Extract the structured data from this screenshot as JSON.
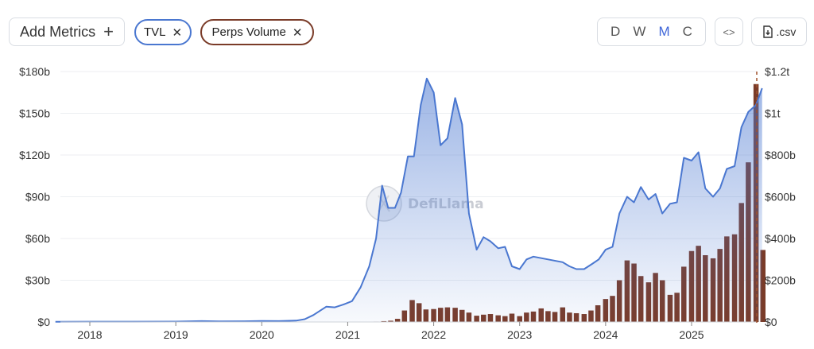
{
  "toolbar": {
    "add_metrics_label": "Add Metrics",
    "add_icon": "+",
    "chips": [
      {
        "label": "TVL",
        "color": "#4a77d0"
      },
      {
        "label": "Perps Volume",
        "color": "#7a3b28"
      }
    ],
    "close_icon": "✕",
    "periods": [
      "D",
      "W",
      "M",
      "C"
    ],
    "active_period": "M",
    "embed_icon": "<>",
    "csv_label": ".csv"
  },
  "watermark": "DefiLlama",
  "chart_data": {
    "type": "line",
    "x_ticks": [
      "2018",
      "2019",
      "2020",
      "2021",
      "2022",
      "2023",
      "2024",
      "2025"
    ],
    "y_left": {
      "ticks": [
        "$0",
        "$30b",
        "$60b",
        "$90b",
        "$120b",
        "$150b",
        "$180b"
      ],
      "range": [
        0,
        180
      ],
      "unit": "b"
    },
    "y_right": {
      "ticks": [
        "$0",
        "$200b",
        "$400b",
        "$600b",
        "$800b",
        "$1t",
        "$1.2t"
      ],
      "range": [
        0,
        1200
      ],
      "unit": "b"
    },
    "grid": true,
    "series": [
      {
        "name": "TVL",
        "type": "area",
        "axis": "left",
        "color": "#4a77d0",
        "points": [
          [
            2017.6,
            0.1
          ],
          [
            2018.0,
            0.2
          ],
          [
            2018.5,
            0.2
          ],
          [
            2019.0,
            0.3
          ],
          [
            2019.3,
            0.6
          ],
          [
            2019.5,
            0.4
          ],
          [
            2019.8,
            0.5
          ],
          [
            2020.0,
            0.7
          ],
          [
            2020.2,
            0.6
          ],
          [
            2020.4,
            1.0
          ],
          [
            2020.5,
            2.0
          ],
          [
            2020.6,
            5.0
          ],
          [
            2020.7,
            9.0
          ],
          [
            2020.75,
            11.0
          ],
          [
            2020.85,
            10.5
          ],
          [
            2020.95,
            12.5
          ],
          [
            2021.05,
            15.0
          ],
          [
            2021.15,
            25.0
          ],
          [
            2021.25,
            40.0
          ],
          [
            2021.33,
            60.0
          ],
          [
            2021.4,
            98.0
          ],
          [
            2021.47,
            82.0
          ],
          [
            2021.55,
            82.0
          ],
          [
            2021.62,
            93.0
          ],
          [
            2021.7,
            119.0
          ],
          [
            2021.77,
            119.0
          ],
          [
            2021.85,
            156.0
          ],
          [
            2021.92,
            175.0
          ],
          [
            2022.0,
            165.0
          ],
          [
            2022.08,
            127.0
          ],
          [
            2022.16,
            132.0
          ],
          [
            2022.25,
            161.0
          ],
          [
            2022.33,
            142.0
          ],
          [
            2022.41,
            78.0
          ],
          [
            2022.5,
            52.0
          ],
          [
            2022.58,
            61.0
          ],
          [
            2022.66,
            58.0
          ],
          [
            2022.75,
            53.0
          ],
          [
            2022.83,
            54.0
          ],
          [
            2022.91,
            40.0
          ],
          [
            2023.0,
            38.0
          ],
          [
            2023.08,
            45.0
          ],
          [
            2023.16,
            47.0
          ],
          [
            2023.33,
            45.0
          ],
          [
            2023.5,
            43.0
          ],
          [
            2023.58,
            40.0
          ],
          [
            2023.66,
            38.0
          ],
          [
            2023.75,
            38.0
          ],
          [
            2023.85,
            42.0
          ],
          [
            2023.92,
            45.0
          ],
          [
            2024.0,
            52.0
          ],
          [
            2024.08,
            54.0
          ],
          [
            2024.16,
            78.0
          ],
          [
            2024.25,
            90.0
          ],
          [
            2024.33,
            86.0
          ],
          [
            2024.41,
            97.0
          ],
          [
            2024.5,
            88.0
          ],
          [
            2024.58,
            92.0
          ],
          [
            2024.66,
            78.0
          ],
          [
            2024.75,
            85.0
          ],
          [
            2024.83,
            86.0
          ],
          [
            2024.91,
            118.0
          ],
          [
            2025.0,
            116.0
          ],
          [
            2025.08,
            122.0
          ],
          [
            2025.16,
            96.0
          ],
          [
            2025.25,
            90.0
          ],
          [
            2025.33,
            96.0
          ],
          [
            2025.41,
            110.0
          ],
          [
            2025.5,
            112.0
          ],
          [
            2025.58,
            140.0
          ],
          [
            2025.66,
            151.0
          ],
          [
            2025.75,
            156.0
          ],
          [
            2025.82,
            168.0
          ]
        ]
      },
      {
        "name": "Perps Volume",
        "type": "bar",
        "axis": "right",
        "color": "#7a3b28",
        "points": [
          [
            2021.25,
            1
          ],
          [
            2021.33,
            2
          ],
          [
            2021.42,
            4
          ],
          [
            2021.5,
            6
          ],
          [
            2021.58,
            15
          ],
          [
            2021.66,
            55
          ],
          [
            2021.75,
            105
          ],
          [
            2021.83,
            90
          ],
          [
            2021.91,
            60
          ],
          [
            2022.0,
            62
          ],
          [
            2022.08,
            68
          ],
          [
            2022.16,
            70
          ],
          [
            2022.25,
            68
          ],
          [
            2022.33,
            58
          ],
          [
            2022.41,
            45
          ],
          [
            2022.5,
            30
          ],
          [
            2022.58,
            35
          ],
          [
            2022.66,
            38
          ],
          [
            2022.75,
            32
          ],
          [
            2022.83,
            28
          ],
          [
            2022.91,
            40
          ],
          [
            2023.0,
            28
          ],
          [
            2023.08,
            45
          ],
          [
            2023.16,
            50
          ],
          [
            2023.25,
            65
          ],
          [
            2023.33,
            52
          ],
          [
            2023.41,
            48
          ],
          [
            2023.5,
            70
          ],
          [
            2023.58,
            45
          ],
          [
            2023.66,
            42
          ],
          [
            2023.75,
            38
          ],
          [
            2023.83,
            55
          ],
          [
            2023.91,
            80
          ],
          [
            2024.0,
            110
          ],
          [
            2024.08,
            125
          ],
          [
            2024.16,
            200
          ],
          [
            2024.25,
            295
          ],
          [
            2024.33,
            280
          ],
          [
            2024.41,
            220
          ],
          [
            2024.5,
            190
          ],
          [
            2024.58,
            235
          ],
          [
            2024.66,
            200
          ],
          [
            2024.75,
            130
          ],
          [
            2024.83,
            140
          ],
          [
            2024.91,
            265
          ],
          [
            2025.0,
            340
          ],
          [
            2025.08,
            365
          ],
          [
            2025.16,
            320
          ],
          [
            2025.25,
            305
          ],
          [
            2025.33,
            350
          ],
          [
            2025.41,
            410
          ],
          [
            2025.5,
            420
          ],
          [
            2025.58,
            570
          ],
          [
            2025.66,
            765
          ],
          [
            2025.75,
            1140
          ],
          [
            2025.83,
            345
          ]
        ]
      }
    ]
  }
}
